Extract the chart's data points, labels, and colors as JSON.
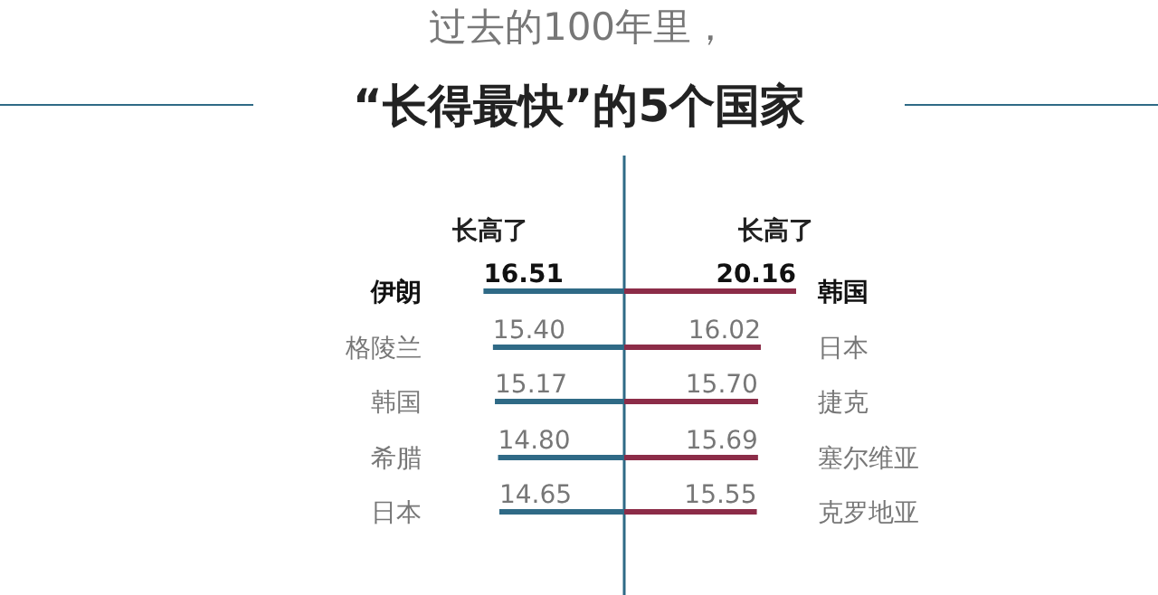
{
  "chart_data": [
    {
      "type": "bar",
      "orientation": "horizontal",
      "subtitle": "过去的100年里，",
      "title": "“长得最快”的5个国家",
      "xlabel": "长高了",
      "categories": [
        "伊朗",
        "格陵兰",
        "韩国",
        "希腊",
        "日本"
      ],
      "values": [
        16.51,
        15.4,
        15.17,
        14.8,
        14.65
      ],
      "value_labels": [
        "16.51",
        "15.40",
        "15.17",
        "14.80",
        "14.65"
      ],
      "color": "#2f6a86"
    },
    {
      "type": "bar",
      "orientation": "horizontal",
      "xlabel": "长高了",
      "categories": [
        "韩国",
        "日本",
        "捷克",
        "塞尔维亚",
        "克罗地亚"
      ],
      "values": [
        20.16,
        16.02,
        15.7,
        15.69,
        15.55
      ],
      "value_labels": [
        "20.16",
        "16.02",
        "15.70",
        "15.69",
        "15.55"
      ],
      "color": "#8c2c48"
    }
  ]
}
